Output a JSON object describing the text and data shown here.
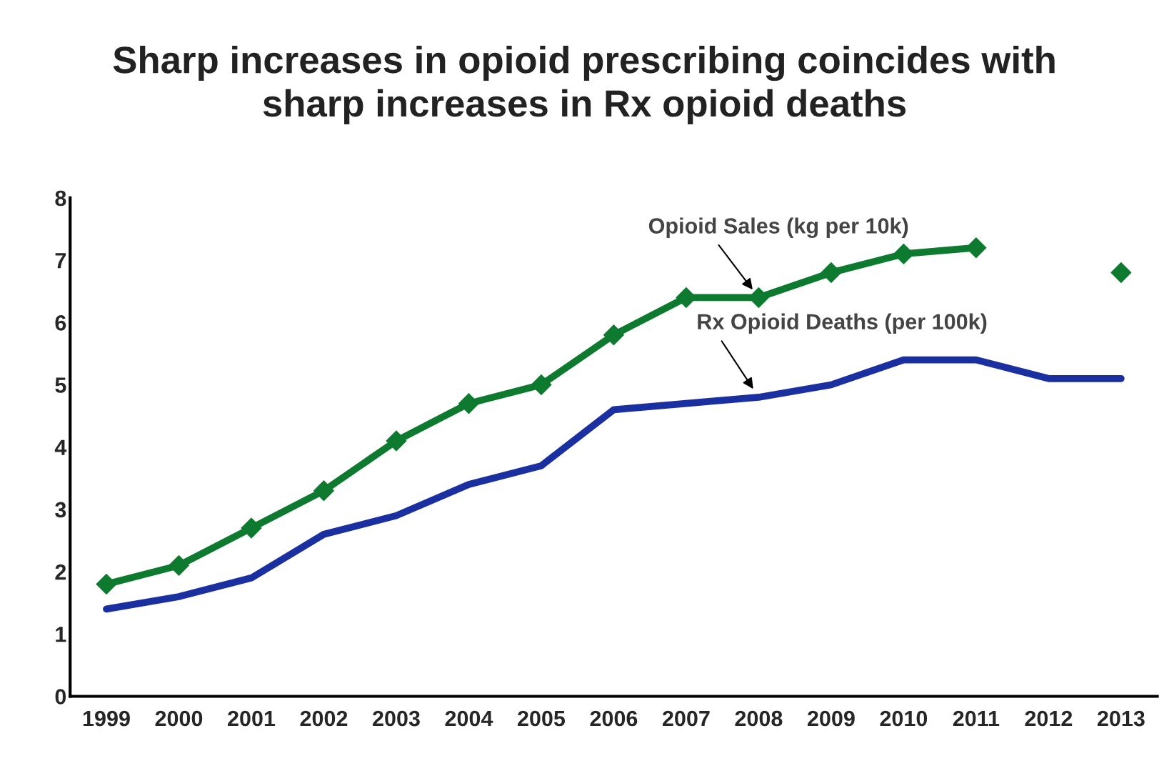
{
  "chart_data": {
    "type": "line",
    "title": "Sharp increases in opioid prescribing coincides with\nsharp increases in Rx opioid deaths",
    "categories": [
      "1999",
      "2000",
      "2001",
      "2002",
      "2003",
      "2004",
      "2005",
      "2006",
      "2007",
      "2008",
      "2009",
      "2010",
      "2011",
      "2012",
      "2013"
    ],
    "series": [
      {
        "color": "#0e7a30",
        "marker": "diamond",
        "values": [
          1.8,
          2.1,
          2.7,
          3.3,
          4.1,
          4.7,
          5.0,
          5.8,
          6.4,
          6.4,
          6.8,
          7.1,
          7.2,
          null,
          6.8
        ]
      },
      {
        "color": "#1a2fa0",
        "marker": "none",
        "values": [
          1.4,
          1.6,
          1.9,
          2.6,
          2.9,
          3.4,
          3.7,
          4.6,
          4.7,
          4.8,
          5.0,
          5.4,
          5.4,
          5.1,
          5.1
        ]
      }
    ],
    "annotations": [
      {
        "text": "Opioid Sales (kg per 10k)",
        "x": "2008",
        "y": 6.4
      },
      {
        "text": "Rx Opioid Deaths (per 100k)",
        "x": "2008",
        "y": 4.8
      }
    ],
    "ylim": [
      0,
      8
    ],
    "yticks": [
      0,
      1,
      2,
      3,
      4,
      5,
      6,
      7,
      8
    ],
    "grid": false,
    "legend": false,
    "line_style": "solid"
  }
}
